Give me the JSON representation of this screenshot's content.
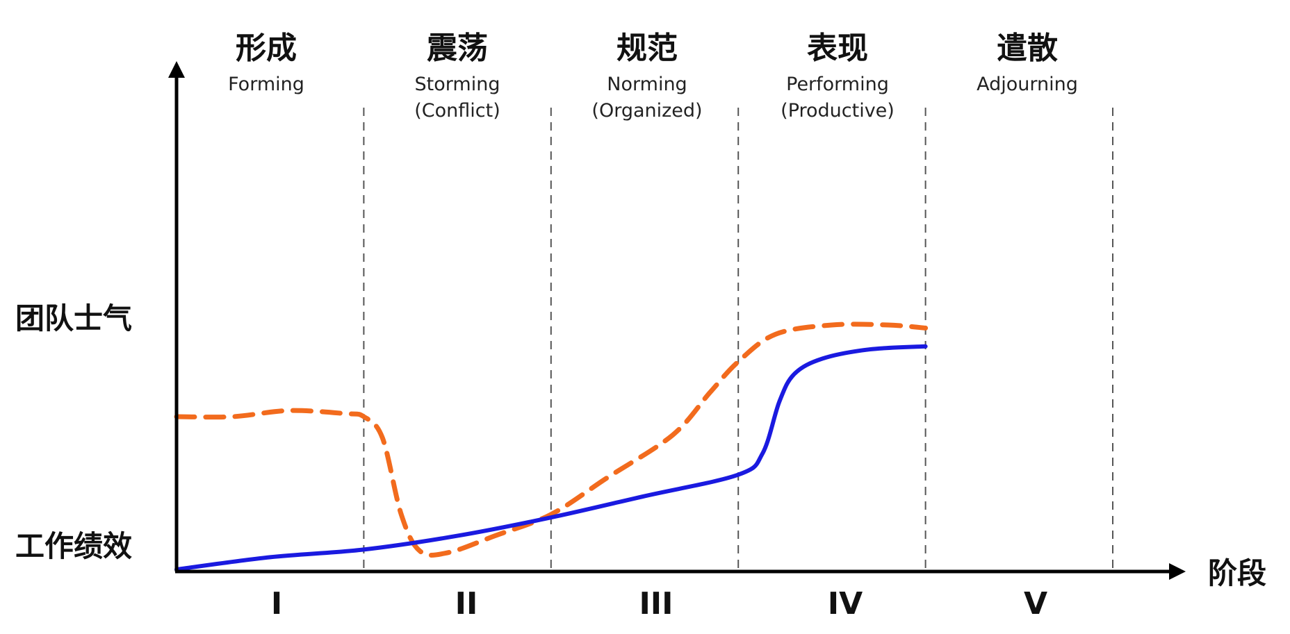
{
  "stages": [
    {
      "roman": "I",
      "cn": "形成",
      "en": [
        "Forming"
      ]
    },
    {
      "roman": "II",
      "cn": "震荡",
      "en": [
        "Storming",
        "(Conflict)"
      ]
    },
    {
      "roman": "III",
      "cn": "规范",
      "en": [
        "Norming",
        "(Organized)"
      ]
    },
    {
      "roman": "IV",
      "cn": "表现",
      "en": [
        "Performing",
        "(Productive)"
      ]
    },
    {
      "roman": "V",
      "cn": "遣散",
      "en": [
        "Adjourning"
      ]
    }
  ],
  "labels": {
    "morale": "团队士气",
    "performance": "工作绩效",
    "x_axis": "阶段"
  },
  "curves": {
    "morale": {
      "color": "#f26b1d",
      "style": "dashed",
      "points": [
        [
          0.0,
          0.5
        ],
        [
          0.3,
          0.5
        ],
        [
          0.6,
          0.52
        ],
        [
          0.9,
          0.51
        ],
        [
          1.0,
          0.5
        ],
        [
          1.1,
          0.43
        ],
        [
          1.2,
          0.18
        ],
        [
          1.3,
          0.06
        ],
        [
          1.45,
          0.055
        ],
        [
          1.7,
          0.11
        ],
        [
          2.0,
          0.18
        ],
        [
          2.3,
          0.3
        ],
        [
          2.65,
          0.44
        ],
        [
          2.85,
          0.58
        ],
        [
          3.0,
          0.68
        ],
        [
          3.2,
          0.77
        ],
        [
          3.5,
          0.8
        ],
        [
          3.8,
          0.8
        ],
        [
          4.0,
          0.79
        ]
      ]
    },
    "performance": {
      "color": "#1a1ae0",
      "style": "solid",
      "points": [
        [
          0.0,
          0.0
        ],
        [
          0.5,
          0.04
        ],
        [
          1.0,
          0.065
        ],
        [
          1.5,
          0.11
        ],
        [
          2.0,
          0.17
        ],
        [
          2.5,
          0.24
        ],
        [
          3.0,
          0.31
        ],
        [
          3.13,
          0.38
        ],
        [
          3.22,
          0.55
        ],
        [
          3.3,
          0.64
        ],
        [
          3.45,
          0.69
        ],
        [
          3.7,
          0.72
        ],
        [
          4.0,
          0.73
        ]
      ]
    }
  }
}
